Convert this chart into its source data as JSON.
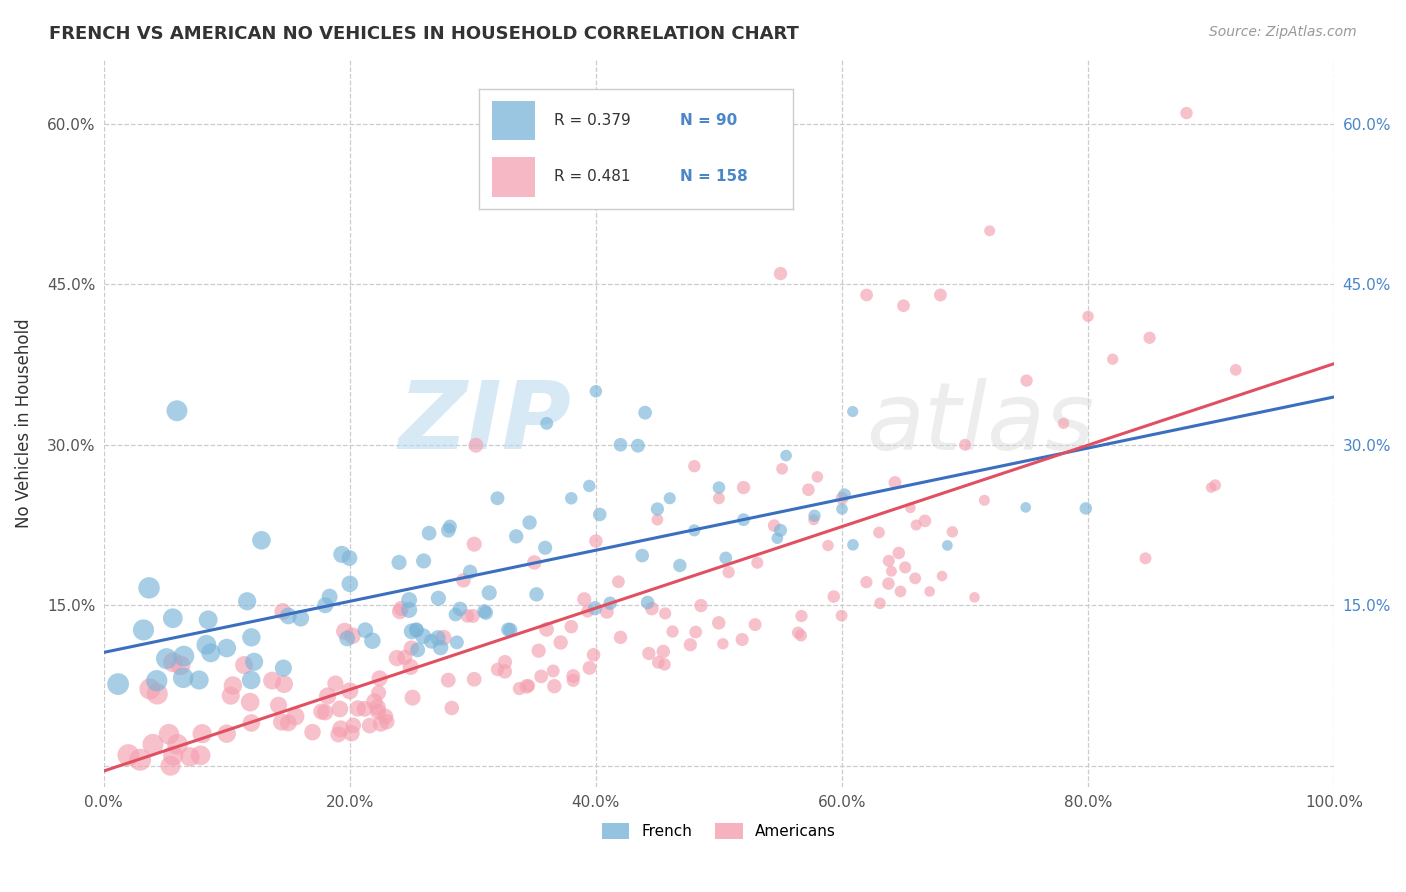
{
  "title": "FRENCH VS AMERICAN NO VEHICLES IN HOUSEHOLD CORRELATION CHART",
  "source": "Source: ZipAtlas.com",
  "ylabel": "No Vehicles in Household",
  "watermark_zip": "ZIP",
  "watermark_atlas": "atlas",
  "french_R": 0.379,
  "french_N": 90,
  "american_R": 0.481,
  "american_N": 158,
  "french_color": "#7ab4d8",
  "american_color": "#f4a0b0",
  "french_line_color": "#3a6fbf",
  "american_line_color": "#e05060",
  "background_color": "#ffffff",
  "grid_color": "#cccccc",
  "xlim": [
    0.0,
    1.0
  ],
  "ylim": [
    -0.02,
    0.66
  ],
  "xticks": [
    0.0,
    0.2,
    0.4,
    0.6,
    0.8,
    1.0
  ],
  "xtick_labels": [
    "0.0%",
    "20.0%",
    "40.0%",
    "60.0%",
    "80.0%",
    "100.0%"
  ],
  "ytick_left_vals": [
    0.0,
    0.15,
    0.3,
    0.45,
    0.6
  ],
  "ytick_left_labels": [
    "",
    "15.0%",
    "30.0%",
    "45.0%",
    "60.0%"
  ],
  "ytick_right_vals": [
    0.15,
    0.3,
    0.45,
    0.6
  ],
  "ytick_right_labels": [
    "15.0%",
    "30.0%",
    "45.0%",
    "60.0%"
  ],
  "french_seed": 12,
  "american_seed": 7,
  "legend_bottom_labels": [
    "French",
    "Americans"
  ]
}
